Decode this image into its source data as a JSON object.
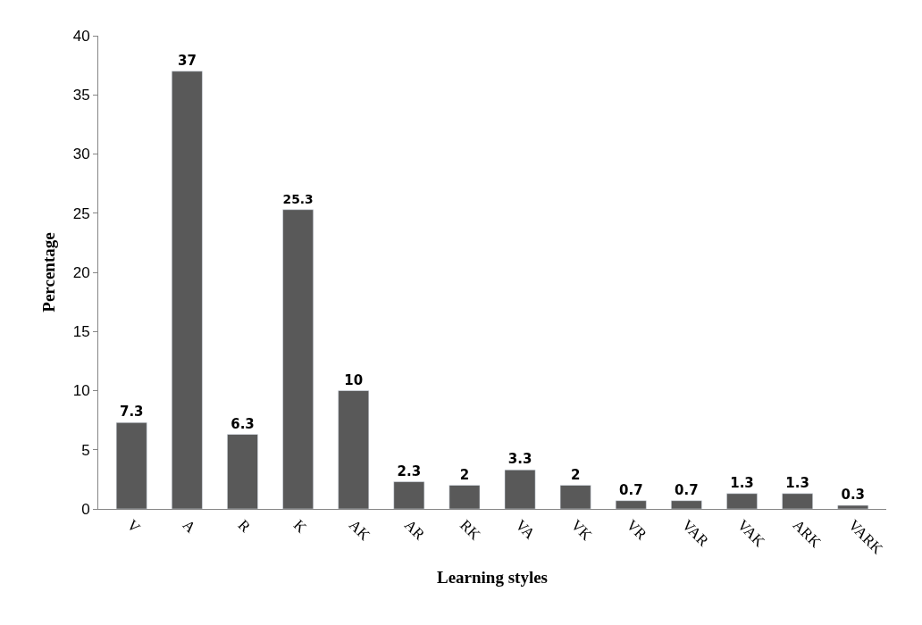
{
  "chart_data": {
    "type": "bar",
    "xlabel": "Learning styles",
    "ylabel": "Percentage",
    "categories": [
      "V",
      "A",
      "R",
      "K",
      "AK",
      "AR",
      "RK",
      "VA",
      "VK",
      "VR",
      "VAR",
      "VAK",
      "ARK",
      "VARK"
    ],
    "values": [
      7.3,
      37,
      6.3,
      25.3,
      10,
      2.3,
      2,
      3.3,
      2,
      0.7,
      0.7,
      1.3,
      1.3,
      0.3
    ],
    "color": "#595959",
    "ylim": [
      0,
      40
    ],
    "yticks": [
      0,
      5,
      10,
      15,
      20,
      25,
      30,
      35,
      40
    ],
    "legend": false,
    "data_labels": true
  }
}
